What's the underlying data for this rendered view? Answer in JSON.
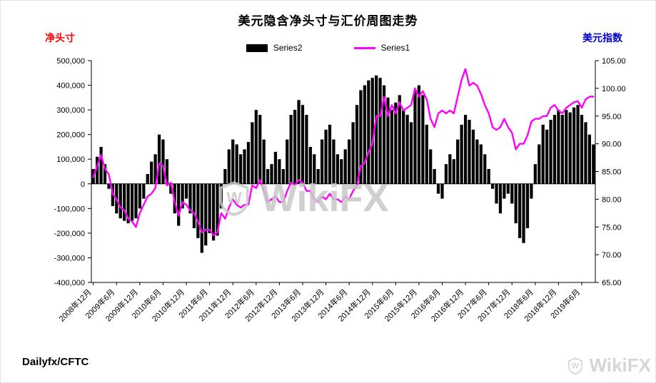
{
  "footer": {
    "source": "Dailyfx/CFTC"
  },
  "watermark": {
    "center": "WikiFX",
    "corner": "WikiFX"
  },
  "chart_data": {
    "type": "bar",
    "title": "美元隐含净头寸与汇价周图走势",
    "left_axis": {
      "title": "净头寸",
      "min": -400000,
      "max": 500000,
      "step": 100000
    },
    "right_axis": {
      "title": "美元指数",
      "min": 65,
      "max": 105,
      "step": 5
    },
    "x_ticks": [
      {
        "index": 0,
        "label": "2008年12月"
      },
      {
        "index": 6,
        "label": "2009年6月"
      },
      {
        "index": 12,
        "label": "2009年12月"
      },
      {
        "index": 18,
        "label": "2010年6月"
      },
      {
        "index": 24,
        "label": "2010年12月"
      },
      {
        "index": 30,
        "label": "2011年6月"
      },
      {
        "index": 36,
        "label": "2011年12月"
      },
      {
        "index": 42,
        "label": "2012年6月"
      },
      {
        "index": 48,
        "label": "2012年12月"
      },
      {
        "index": 54,
        "label": "2013年6月"
      },
      {
        "index": 60,
        "label": "2013年12月"
      },
      {
        "index": 66,
        "label": "2014年6月"
      },
      {
        "index": 72,
        "label": "2014年12月"
      },
      {
        "index": 78,
        "label": "2015年6月"
      },
      {
        "index": 84,
        "label": "2015年12月"
      },
      {
        "index": 90,
        "label": "2016年6月"
      },
      {
        "index": 96,
        "label": "2016年12月"
      },
      {
        "index": 102,
        "label": "2017年6月"
      },
      {
        "index": 108,
        "label": "2017年12月"
      },
      {
        "index": 114,
        "label": "2018年6月"
      },
      {
        "index": 120,
        "label": "2018年12月"
      },
      {
        "index": 126,
        "label": "2019年6月"
      }
    ],
    "categories": [
      "2008-12",
      "2009-01",
      "2009-02",
      "2009-03",
      "2009-04",
      "2009-05",
      "2009-06",
      "2009-07",
      "2009-08",
      "2009-09",
      "2009-10",
      "2009-11",
      "2009-12",
      "2010-01",
      "2010-02",
      "2010-03",
      "2010-04",
      "2010-05",
      "2010-06",
      "2010-07",
      "2010-08",
      "2010-09",
      "2010-10",
      "2010-11",
      "2010-12",
      "2011-01",
      "2011-02",
      "2011-03",
      "2011-04",
      "2011-05",
      "2011-06",
      "2011-07",
      "2011-08",
      "2011-09",
      "2011-10",
      "2011-11",
      "2011-12",
      "2012-01",
      "2012-02",
      "2012-03",
      "2012-04",
      "2012-05",
      "2012-06",
      "2012-07",
      "2012-08",
      "2012-09",
      "2012-10",
      "2012-11",
      "2012-12",
      "2013-01",
      "2013-02",
      "2013-03",
      "2013-04",
      "2013-05",
      "2013-06",
      "2013-07",
      "2013-08",
      "2013-09",
      "2013-10",
      "2013-11",
      "2013-12",
      "2014-01",
      "2014-02",
      "2014-03",
      "2014-04",
      "2014-05",
      "2014-06",
      "2014-07",
      "2014-08",
      "2014-09",
      "2014-10",
      "2014-11",
      "2014-12",
      "2015-01",
      "2015-02",
      "2015-03",
      "2015-04",
      "2015-05",
      "2015-06",
      "2015-07",
      "2015-08",
      "2015-09",
      "2015-10",
      "2015-11",
      "2015-12",
      "2016-01",
      "2016-02",
      "2016-03",
      "2016-04",
      "2016-05",
      "2016-06",
      "2016-07",
      "2016-08",
      "2016-09",
      "2016-10",
      "2016-11",
      "2016-12",
      "2017-01",
      "2017-02",
      "2017-03",
      "2017-04",
      "2017-05",
      "2017-06",
      "2017-07",
      "2017-08",
      "2017-09",
      "2017-10",
      "2017-11",
      "2017-12",
      "2018-01",
      "2018-02",
      "2018-03",
      "2018-04",
      "2018-05",
      "2018-06",
      "2018-07",
      "2018-08",
      "2018-09",
      "2018-10",
      "2018-11",
      "2018-12",
      "2019-01",
      "2019-02",
      "2019-03",
      "2019-04",
      "2019-05",
      "2019-06",
      "2019-07",
      "2019-08",
      "2019-09"
    ],
    "series": [
      {
        "name": "Series2",
        "type": "bar",
        "axis": "left",
        "color": "#000000",
        "values": [
          60000,
          110000,
          150000,
          80000,
          -20000,
          -90000,
          -120000,
          -140000,
          -150000,
          -160000,
          -150000,
          -140000,
          -100000,
          -60000,
          40000,
          90000,
          120000,
          200000,
          180000,
          100000,
          -40000,
          -120000,
          -170000,
          -100000,
          -60000,
          -120000,
          -180000,
          -220000,
          -280000,
          -250000,
          -200000,
          -230000,
          -210000,
          -100000,
          60000,
          140000,
          180000,
          160000,
          120000,
          140000,
          170000,
          250000,
          300000,
          280000,
          180000,
          60000,
          80000,
          130000,
          100000,
          60000,
          180000,
          280000,
          300000,
          340000,
          320000,
          280000,
          150000,
          120000,
          60000,
          180000,
          220000,
          240000,
          180000,
          120000,
          100000,
          140000,
          180000,
          250000,
          320000,
          380000,
          400000,
          420000,
          430000,
          440000,
          430000,
          400000,
          350000,
          300000,
          330000,
          360000,
          300000,
          280000,
          250000,
          380000,
          400000,
          360000,
          240000,
          140000,
          60000,
          -40000,
          -60000,
          80000,
          120000,
          100000,
          180000,
          240000,
          280000,
          260000,
          220000,
          180000,
          160000,
          120000,
          60000,
          -20000,
          -80000,
          -120000,
          -60000,
          -40000,
          -80000,
          -160000,
          -220000,
          -240000,
          -180000,
          -60000,
          80000,
          160000,
          240000,
          220000,
          260000,
          280000,
          300000,
          280000,
          300000,
          290000,
          310000,
          320000,
          280000,
          250000,
          200000,
          160000
        ]
      },
      {
        "name": "Series1",
        "type": "line",
        "axis": "right",
        "color": "#ff00ff",
        "values": [
          84,
          86,
          88,
          85.5,
          84.5,
          81,
          80,
          78.5,
          78,
          76.5,
          76,
          75,
          77.5,
          79,
          80.5,
          81,
          82,
          86.5,
          86,
          82.5,
          83,
          79.5,
          77,
          79.5,
          79,
          78,
          77.5,
          76,
          74,
          74.5,
          74.5,
          73.5,
          74,
          77.5,
          76.5,
          78.5,
          80,
          79,
          78.5,
          79,
          79,
          82.5,
          82,
          83.5,
          81.5,
          79.5,
          80,
          80.5,
          79.5,
          79.5,
          81.5,
          83,
          82.5,
          83.5,
          83,
          81.5,
          81.5,
          80,
          79.5,
          80.5,
          80,
          81,
          80,
          80,
          79.5,
          80.5,
          80,
          81.5,
          82.5,
          86,
          86.5,
          88.5,
          90,
          95,
          95,
          98.5,
          95,
          97,
          95.5,
          97.5,
          96,
          96.5,
          97,
          100,
          98.5,
          99.5,
          98,
          94.5,
          93,
          95.5,
          96,
          95.5,
          96,
          95.5,
          98.5,
          101.5,
          103.5,
          100.5,
          101,
          100.5,
          99,
          97,
          95.5,
          93,
          92.5,
          93,
          94.5,
          93,
          92,
          89,
          90,
          90,
          91.5,
          94,
          94.5,
          94.5,
          95,
          95,
          96.5,
          97,
          96,
          95.5,
          96.5,
          97,
          97.5,
          97.7,
          96.5,
          98,
          98.5,
          98.5
        ]
      }
    ]
  }
}
